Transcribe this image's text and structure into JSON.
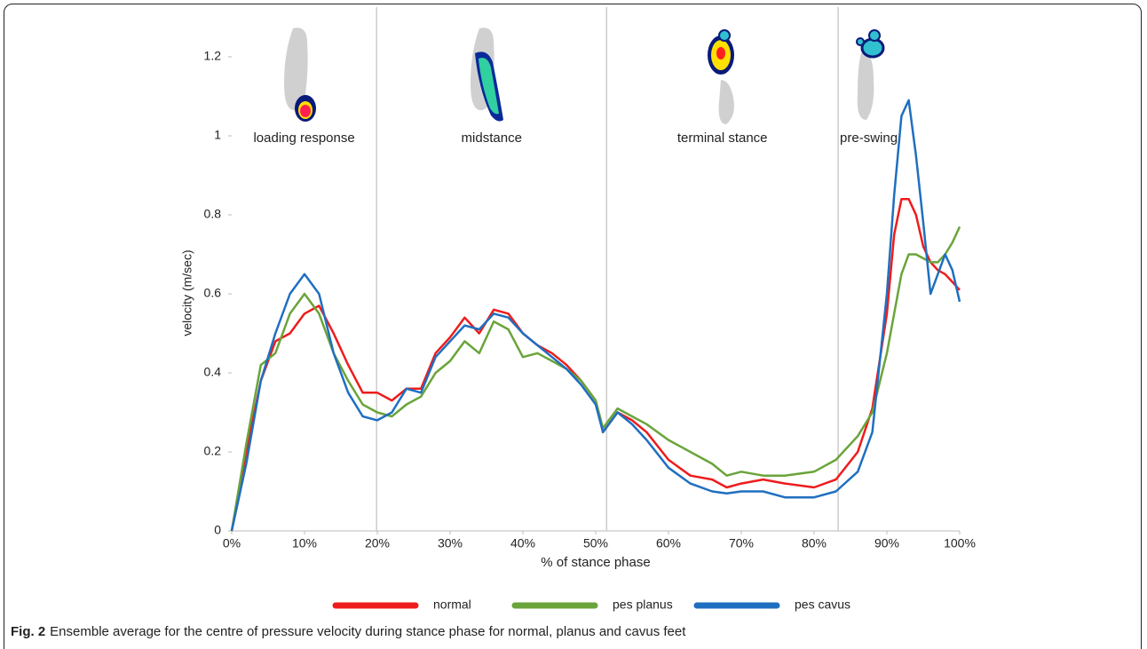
{
  "chart_data": {
    "type": "line",
    "xlabel": "% of stance phase",
    "ylabel": "velocity (m/sec)",
    "caption_label": "Fig. 2",
    "caption": "Ensemble average for the centre of pressure velocity during stance phase for normal, planus and cavus feet",
    "xlim": [
      0,
      100
    ],
    "ylim": [
      0,
      1.25
    ],
    "xticks": [
      {
        "value": 0,
        "label": "0%"
      },
      {
        "value": 10,
        "label": "10%"
      },
      {
        "value": 20,
        "label": "20%"
      },
      {
        "value": 30,
        "label": "30%"
      },
      {
        "value": 40,
        "label": "40%"
      },
      {
        "value": 50,
        "label": "50%"
      },
      {
        "value": 60,
        "label": "60%"
      },
      {
        "value": 70,
        "label": "70%"
      },
      {
        "value": 80,
        "label": "80%"
      },
      {
        "value": 90,
        "label": "90%"
      },
      {
        "value": 100,
        "label": "100%"
      }
    ],
    "yticks": [
      0,
      0.2,
      0.4,
      0.6,
      0.8,
      1,
      1.2
    ],
    "phase_boundaries": [
      19.9,
      51.5,
      83.3
    ],
    "phases": [
      "loading response",
      "midstance",
      "terminal stance",
      "pre-swing"
    ],
    "x": [
      0,
      2,
      4,
      6,
      8,
      10,
      12,
      14,
      16,
      18,
      20,
      22,
      24,
      26,
      28,
      30,
      32,
      34,
      36,
      38,
      40,
      42,
      44,
      46,
      48,
      50,
      51,
      53,
      55,
      57,
      60,
      63,
      66,
      68,
      70,
      73,
      76,
      80,
      83,
      86,
      88,
      90,
      91,
      92,
      93,
      94,
      95,
      96,
      97,
      98,
      99,
      100
    ],
    "series": [
      {
        "name": "normal",
        "color": "#ee1c1c",
        "values": [
          0,
          0.2,
          0.38,
          0.48,
          0.5,
          0.55,
          0.57,
          0.5,
          0.42,
          0.35,
          0.35,
          0.33,
          0.36,
          0.36,
          0.45,
          0.49,
          0.54,
          0.5,
          0.56,
          0.55,
          0.5,
          0.47,
          0.45,
          0.42,
          0.38,
          0.33,
          0.25,
          0.3,
          0.28,
          0.25,
          0.18,
          0.14,
          0.13,
          0.11,
          0.12,
          0.13,
          0.12,
          0.11,
          0.13,
          0.2,
          0.31,
          0.55,
          0.75,
          0.84,
          0.84,
          0.8,
          0.72,
          0.68,
          0.66,
          0.65,
          0.63,
          0.61
        ]
      },
      {
        "name": "pes planus",
        "color": "#6aa43a",
        "values": [
          0,
          0.22,
          0.42,
          0.45,
          0.55,
          0.6,
          0.55,
          0.45,
          0.38,
          0.32,
          0.3,
          0.29,
          0.32,
          0.34,
          0.4,
          0.43,
          0.48,
          0.45,
          0.53,
          0.51,
          0.44,
          0.45,
          0.43,
          0.41,
          0.38,
          0.33,
          0.26,
          0.31,
          0.29,
          0.27,
          0.23,
          0.2,
          0.17,
          0.14,
          0.15,
          0.14,
          0.14,
          0.15,
          0.18,
          0.24,
          0.3,
          0.45,
          0.55,
          0.65,
          0.7,
          0.7,
          0.69,
          0.68,
          0.68,
          0.7,
          0.73,
          0.77
        ]
      },
      {
        "name": "pes cavus",
        "color": "#1f6fc0",
        "values": [
          0,
          0.17,
          0.38,
          0.5,
          0.6,
          0.65,
          0.6,
          0.45,
          0.35,
          0.29,
          0.28,
          0.3,
          0.36,
          0.35,
          0.44,
          0.48,
          0.52,
          0.51,
          0.55,
          0.54,
          0.5,
          0.47,
          0.44,
          0.41,
          0.37,
          0.32,
          0.25,
          0.3,
          0.27,
          0.23,
          0.16,
          0.12,
          0.1,
          0.095,
          0.1,
          0.1,
          0.085,
          0.085,
          0.1,
          0.15,
          0.25,
          0.6,
          0.85,
          1.05,
          1.09,
          0.95,
          0.78,
          0.6,
          0.65,
          0.7,
          0.66,
          0.58
        ]
      }
    ]
  }
}
